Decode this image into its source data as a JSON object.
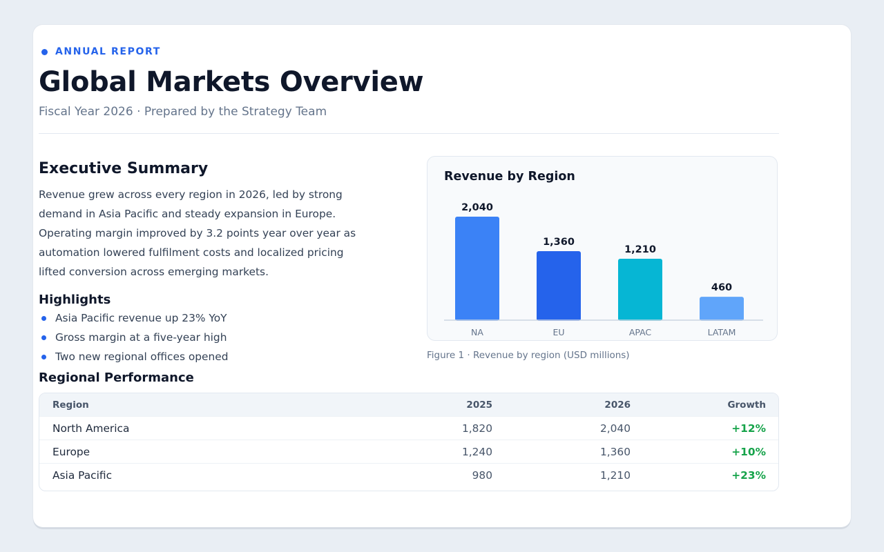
{
  "report": {
    "eyebrow": "ANNUAL REPORT",
    "title": "Global Markets Overview",
    "subtitle": "Fiscal Year 2026 · Prepared by the Strategy Team"
  },
  "summary": {
    "heading": "Executive Summary",
    "body": "Revenue grew across every region in 2026, led by strong demand in Asia Pacific and steady expansion in Europe. Operating margin improved by 3.2 points year over year as automation lowered fulfilment costs and localized pricing lifted conversion across emerging markets."
  },
  "highlights": {
    "heading": "Highlights",
    "items": [
      "Asia Pacific revenue up 23% YoY",
      "Gross margin at a five-year high",
      "Two new regional offices opened"
    ]
  },
  "chart_data": {
    "type": "bar",
    "title": "Revenue by Region",
    "categories": [
      "NA",
      "EU",
      "APAC",
      "LATAM"
    ],
    "values": [
      2040,
      1360,
      1210,
      460
    ],
    "value_labels": [
      "2,040",
      "1,360",
      "1,210",
      "460"
    ],
    "colors": [
      "#3b82f6",
      "#2563eb",
      "#06b6d4",
      "#60a5fa"
    ],
    "xlabel": "",
    "ylabel": "",
    "grid": false,
    "caption": "Figure 1 · Revenue by region (USD millions)"
  },
  "table": {
    "heading": "Regional Performance",
    "columns": [
      "Region",
      "2025",
      "2026",
      "Growth"
    ],
    "rows": [
      [
        "North America",
        "1,820",
        "2,040",
        "+12%"
      ],
      [
        "Europe",
        "1,240",
        "1,360",
        "+10%"
      ],
      [
        "Asia Pacific",
        "980",
        "1,210",
        "+23%"
      ]
    ]
  },
  "colors": {
    "accent": "#2563eb",
    "positive": "#16a34a"
  }
}
